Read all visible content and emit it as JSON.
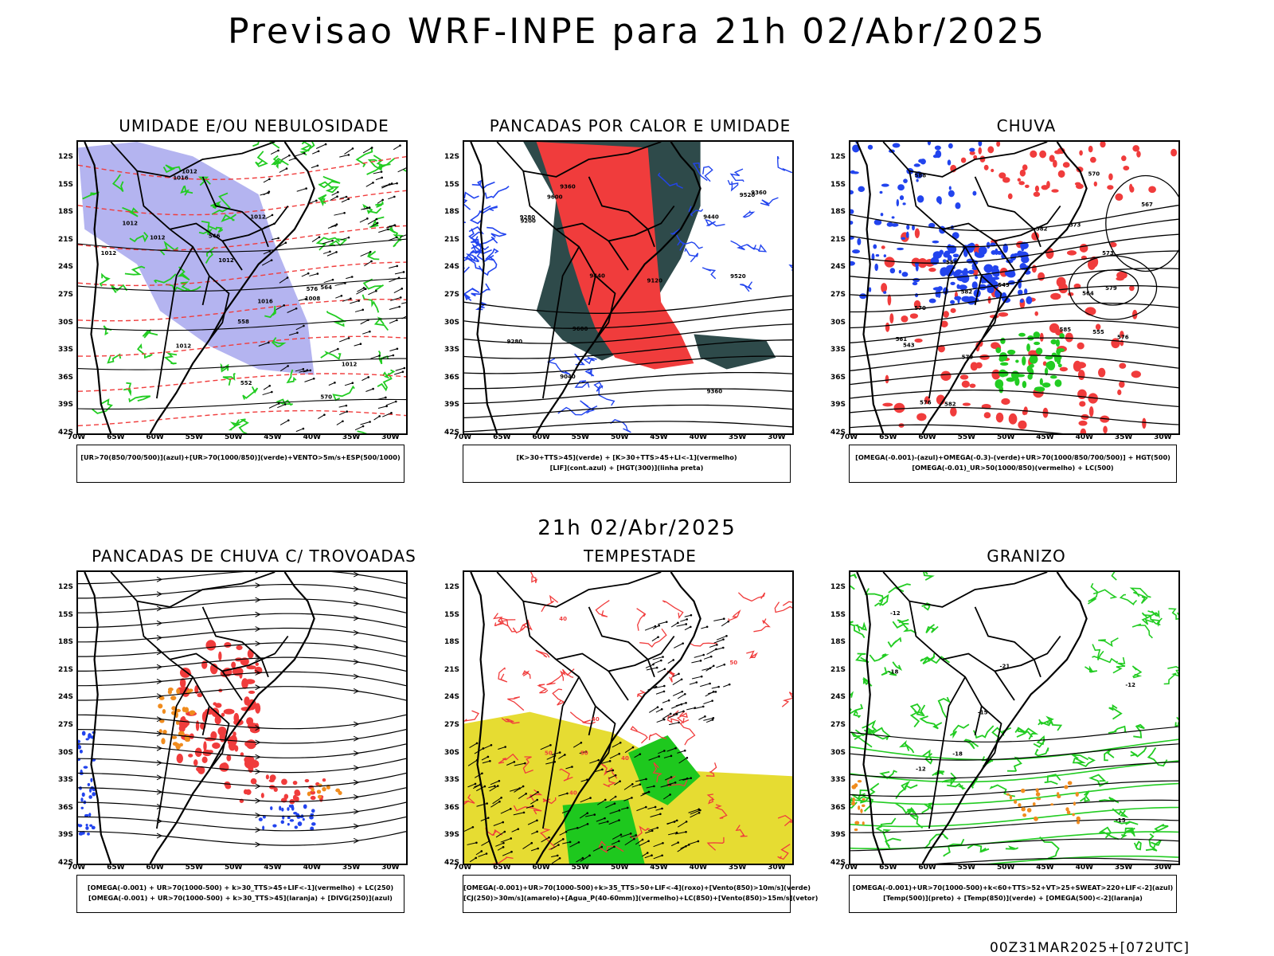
{
  "header": {
    "title": "Previsao WRF-INPE  para 21h 02/Abr/2025",
    "mid_title": "21h 02/Abr/2025",
    "footer": "00Z31MAR2025+[072UTC]"
  },
  "axes": {
    "latitudes": [
      "12S",
      "15S",
      "18S",
      "21S",
      "24S",
      "27S",
      "30S",
      "33S",
      "36S",
      "39S",
      "42S"
    ],
    "longitudes": [
      "70W",
      "65W",
      "60W",
      "55W",
      "50W",
      "45W",
      "40W",
      "35W",
      "30W"
    ]
  },
  "colors": {
    "humidity_blue": "#b4b4f0",
    "green": "#22cc22",
    "red": "#f03c3c",
    "dark_teal": "#2e4a4a",
    "blue": "#2244ee",
    "orange": "#f08c1e",
    "yellow": "#e6dc32",
    "bright_green": "#1ec81e"
  },
  "panels": [
    {
      "id": "umidade",
      "title": "UMIDADE E/OU NEBULOSIDADE",
      "legend": [
        "[UR>70(850/700/500)](azul)+[UR>70(1000/850)](verde)+VENTO>5m/s+ESP(500/1000)"
      ],
      "contour_labels": [
        "1012",
        "1012",
        "1012",
        "1016",
        "1012",
        "1012",
        "1012",
        "1016",
        "1012",
        "1008",
        "1012",
        "576",
        "570",
        "564",
        "558",
        "552",
        "546"
      ]
    },
    {
      "id": "pancadas-calor",
      "title": "PANCADAS POR CALOR E UMIDADE",
      "legend": [
        "[K>30+TTS>45](verde) + [K>30+TTS>45+LI<-1](vermelho)",
        "[LIF](cont.azul) + [HGT(300)](linha preta)"
      ],
      "contour_labels": [
        "9600",
        "9520",
        "9440",
        "9360",
        "9280",
        "9200",
        "9120",
        "9040",
        "9600",
        "9520",
        "9440",
        "9360",
        "9280",
        "9360"
      ]
    },
    {
      "id": "chuva",
      "title": "CHUVA",
      "legend": [
        "[OMEGA(-0.001)-(azul)+OMEGA(-0.3)-(verde)+UR>70(1000/850/700/500)] + HGT(500)",
        "[OMEGA(-0.01)_UR>50(1000/850)(vermelho) + LC(500)"
      ],
      "contour_labels": [
        "582",
        "585",
        "582",
        "579",
        "576",
        "573",
        "570",
        "567",
        "564",
        "561",
        "558",
        "555",
        "549",
        "543",
        "588",
        "582",
        "579",
        "576",
        "573",
        "570"
      ]
    },
    {
      "id": "pancadas-trovoadas",
      "title": "PANCADAS DE CHUVA C/ TROVOADAS",
      "legend": [
        "[OMEGA(-0.001) + UR>70(1000-500) + k>30_TTS>45+LIF<-1](vermelho) + LC(250)",
        "[OMEGA(-0.001) + UR>70(1000-500) + k>30_TTS>45](laranja) + [DIVG(250)](azul)"
      ],
      "contour_labels": []
    },
    {
      "id": "tempestade",
      "title": "TEMPESTADE",
      "legend": [
        "[OMEGA(-0.001)+UR>70(1000-500)+k>35_TTS>50+LIF<-4](roxo)+[Vento(850)>10m/s](verde)",
        "[CJ(250)>30m/s](amarelo)+[Agua_P(40-60mm)](vermelho)+LC(850)+[Vento(850)>15m/s](vetor)"
      ],
      "contour_labels": [
        "50",
        "40",
        "50",
        "40",
        "40",
        "50",
        "40"
      ]
    },
    {
      "id": "granizo",
      "title": "GRANIZO",
      "legend": [
        "[OMEGA(-0.001)+UR>70(1000-500)+k<60+TTS>52+VT>25+SWEAT>220+LIF<-2](azul)",
        "[Temp(500)](preto) + [Temp(850)](verde) + [OMEGA(500)<-2](laranja)"
      ],
      "contour_labels": [
        "-15",
        "-18",
        "-12",
        "-12",
        "-18",
        "-21",
        "-15",
        "-12"
      ]
    }
  ]
}
